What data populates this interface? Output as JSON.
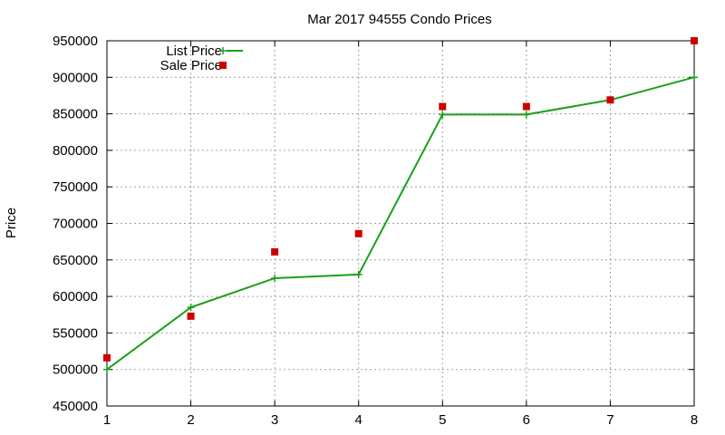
{
  "chart_data": {
    "type": "line",
    "title": "Mar 2017 94555 Condo Prices",
    "xlabel": "",
    "ylabel": "Price",
    "x": [
      1,
      2,
      3,
      4,
      5,
      6,
      7,
      8
    ],
    "xlim": [
      1,
      8
    ],
    "ylim": [
      450000,
      950000
    ],
    "x_ticks": [
      "1",
      "2",
      "3",
      "4",
      "5",
      "6",
      "7",
      "8"
    ],
    "y_ticks": [
      "450000",
      "500000",
      "550000",
      "600000",
      "650000",
      "700000",
      "750000",
      "800000",
      "850000",
      "900000",
      "950000"
    ],
    "grid": true,
    "legend_position": "top-left",
    "series": [
      {
        "name": "List Price",
        "style": "line-with-plus-markers",
        "color": "#1aa01a",
        "values": [
          500000,
          585000,
          625000,
          630000,
          849000,
          849000,
          869000,
          900000
        ]
      },
      {
        "name": "Sale Price",
        "style": "square-points",
        "color": "#cc0000",
        "values": [
          516000,
          573000,
          661000,
          686000,
          860000,
          860000,
          869000,
          950000
        ]
      }
    ]
  }
}
